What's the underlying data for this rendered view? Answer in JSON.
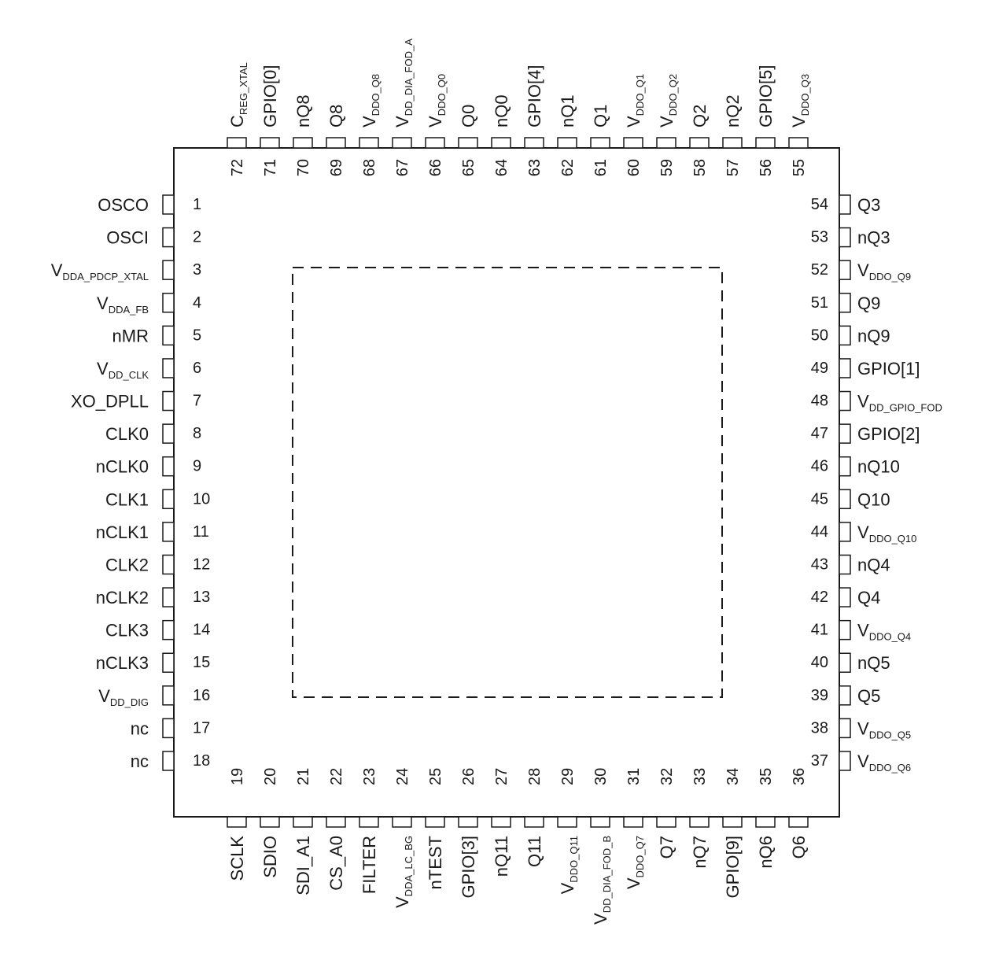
{
  "package": {
    "left": [
      {
        "num": "1",
        "name": "OSCO"
      },
      {
        "num": "2",
        "name": "OSCI"
      },
      {
        "num": "3",
        "name": "V",
        "sub": "DDA_PDCP_XTAL"
      },
      {
        "num": "4",
        "name": "V",
        "sub": "DDA_FB"
      },
      {
        "num": "5",
        "name": "nMR"
      },
      {
        "num": "6",
        "name": "V",
        "sub": "DD_CLK"
      },
      {
        "num": "7",
        "name": "XO_DPLL"
      },
      {
        "num": "8",
        "name": "CLK0"
      },
      {
        "num": "9",
        "name": "nCLK0"
      },
      {
        "num": "10",
        "name": "CLK1"
      },
      {
        "num": "11",
        "name": "nCLK1"
      },
      {
        "num": "12",
        "name": "CLK2"
      },
      {
        "num": "13",
        "name": "nCLK2"
      },
      {
        "num": "14",
        "name": "CLK3"
      },
      {
        "num": "15",
        "name": "nCLK3"
      },
      {
        "num": "16",
        "name": "V",
        "sub": "DD_DIG"
      },
      {
        "num": "17",
        "name": "nc"
      },
      {
        "num": "18",
        "name": "nc"
      }
    ],
    "bottom": [
      {
        "num": "19",
        "name": "SCLK"
      },
      {
        "num": "20",
        "name": "SDIO"
      },
      {
        "num": "21",
        "name": "SDI_A1"
      },
      {
        "num": "22",
        "name": "CS_A0"
      },
      {
        "num": "23",
        "name": "FILTER"
      },
      {
        "num": "24",
        "name": "V",
        "sub": "DDA_LC_BG"
      },
      {
        "num": "25",
        "name": "nTEST"
      },
      {
        "num": "26",
        "name": "GPIO[3]"
      },
      {
        "num": "27",
        "name": "nQ11"
      },
      {
        "num": "28",
        "name": "Q11"
      },
      {
        "num": "29",
        "name": "V",
        "sub": "DDO_Q11"
      },
      {
        "num": "30",
        "name": "V",
        "sub": "DD_DIA_FOD_B"
      },
      {
        "num": "31",
        "name": "V",
        "sub": "DDO_Q7"
      },
      {
        "num": "32",
        "name": "Q7"
      },
      {
        "num": "33",
        "name": "nQ7"
      },
      {
        "num": "34",
        "name": "GPIO[9]"
      },
      {
        "num": "35",
        "name": "nQ6"
      },
      {
        "num": "36",
        "name": "Q6"
      }
    ],
    "right": [
      {
        "num": "37",
        "name": "V",
        "sub": "DDO_Q6"
      },
      {
        "num": "38",
        "name": "V",
        "sub": "DDO_Q5"
      },
      {
        "num": "39",
        "name": "Q5"
      },
      {
        "num": "40",
        "name": "nQ5"
      },
      {
        "num": "41",
        "name": "V",
        "sub": "DDO_Q4"
      },
      {
        "num": "42",
        "name": "Q4"
      },
      {
        "num": "43",
        "name": "nQ4"
      },
      {
        "num": "44",
        "name": "V",
        "sub": "DDO_Q10"
      },
      {
        "num": "45",
        "name": "Q10"
      },
      {
        "num": "46",
        "name": "nQ10"
      },
      {
        "num": "47",
        "name": "GPIO[2]"
      },
      {
        "num": "48",
        "name": "V",
        "sub": "DD_GPIO_FOD"
      },
      {
        "num": "49",
        "name": "GPIO[1]"
      },
      {
        "num": "50",
        "name": "nQ9"
      },
      {
        "num": "51",
        "name": "Q9"
      },
      {
        "num": "52",
        "name": "V",
        "sub": "DDO_Q9"
      },
      {
        "num": "53",
        "name": "nQ3"
      },
      {
        "num": "54",
        "name": "Q3"
      }
    ],
    "top": [
      {
        "num": "55",
        "name": "V",
        "sub": "DDO_Q3"
      },
      {
        "num": "56",
        "name": "GPIO[5]"
      },
      {
        "num": "57",
        "name": "nQ2"
      },
      {
        "num": "58",
        "name": "Q2"
      },
      {
        "num": "59",
        "name": "V",
        "sub": "DDO_Q2"
      },
      {
        "num": "60",
        "name": "V",
        "sub": "DDO_Q1"
      },
      {
        "num": "61",
        "name": "Q1"
      },
      {
        "num": "62",
        "name": "nQ1"
      },
      {
        "num": "63",
        "name": "GPIO[4]"
      },
      {
        "num": "64",
        "name": "nQ0"
      },
      {
        "num": "65",
        "name": "Q0"
      },
      {
        "num": "66",
        "name": "V",
        "sub": "DDO_Q0"
      },
      {
        "num": "67",
        "name": "V",
        "sub": "DD_DIA_FOD_A"
      },
      {
        "num": "68",
        "name": "V",
        "sub": "DDO_Q8"
      },
      {
        "num": "69",
        "name": "Q8"
      },
      {
        "num": "70",
        "name": "nQ8"
      },
      {
        "num": "71",
        "name": "GPIO[0]"
      },
      {
        "num": "72",
        "name": "C",
        "sub": "REG_XTAL"
      }
    ]
  }
}
